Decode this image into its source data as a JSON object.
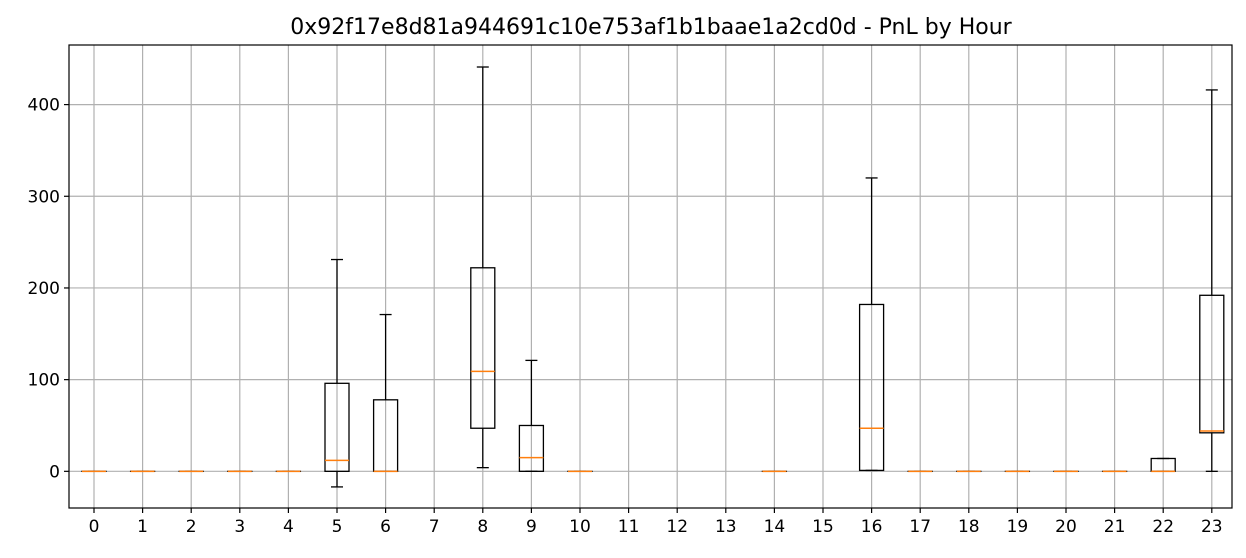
{
  "chart_data": {
    "type": "box",
    "title": "0x92f17e8d81a944691c10e753af1b1baae1a2cd0d - PnL by Hour",
    "xlabel": "",
    "ylabel": "",
    "ylim": [
      -40,
      465
    ],
    "yticks": [
      0,
      100,
      200,
      300,
      400
    ],
    "grid": true,
    "legend": "none",
    "categories": [
      "0",
      "1",
      "2",
      "3",
      "4",
      "5",
      "6",
      "7",
      "8",
      "9",
      "10",
      "11",
      "12",
      "13",
      "14",
      "15",
      "16",
      "17",
      "18",
      "19",
      "20",
      "21",
      "22",
      "23"
    ],
    "boxes": [
      {
        "x": "0",
        "whislo": 0,
        "q1": 0,
        "med": 0,
        "q3": 0,
        "whishi": 0
      },
      {
        "x": "1",
        "whislo": 0,
        "q1": 0,
        "med": 0,
        "q3": 0,
        "whishi": 0
      },
      {
        "x": "2",
        "whislo": 0,
        "q1": 0,
        "med": 0,
        "q3": 0,
        "whishi": 0
      },
      {
        "x": "3",
        "whislo": 0,
        "q1": 0,
        "med": 0,
        "q3": 0,
        "whishi": 0
      },
      {
        "x": "4",
        "whislo": 0,
        "q1": 0,
        "med": 0,
        "q3": 0,
        "whishi": 0
      },
      {
        "x": "5",
        "whislo": -17,
        "q1": 0,
        "med": 12,
        "q3": 96,
        "whishi": 231
      },
      {
        "x": "6",
        "whislo": 0,
        "q1": 0,
        "med": 0,
        "q3": 78,
        "whishi": 171
      },
      {
        "x": "8",
        "whislo": 4,
        "q1": 47,
        "med": 109,
        "q3": 222,
        "whishi": 441
      },
      {
        "x": "9",
        "whislo": 0,
        "q1": 0,
        "med": 15,
        "q3": 50,
        "whishi": 121
      },
      {
        "x": "10",
        "whislo": 0,
        "q1": 0,
        "med": 0,
        "q3": 0,
        "whishi": 0
      },
      {
        "x": "14",
        "whislo": 0,
        "q1": 0,
        "med": 0,
        "q3": 0,
        "whishi": 0
      },
      {
        "x": "16",
        "whislo": 1,
        "q1": 1,
        "med": 47,
        "q3": 182,
        "whishi": 320
      },
      {
        "x": "17",
        "whislo": 0,
        "q1": 0,
        "med": 0,
        "q3": 0,
        "whishi": 0
      },
      {
        "x": "18",
        "whislo": 0,
        "q1": 0,
        "med": 0,
        "q3": 0,
        "whishi": 0
      },
      {
        "x": "19",
        "whislo": 0,
        "q1": 0,
        "med": 0,
        "q3": 0,
        "whishi": 0
      },
      {
        "x": "20",
        "whislo": 0,
        "q1": 0,
        "med": 0,
        "q3": 0,
        "whishi": 0
      },
      {
        "x": "21",
        "whislo": 0,
        "q1": 0,
        "med": 0,
        "q3": 0,
        "whishi": 0
      },
      {
        "x": "22",
        "whislo": 0,
        "q1": 0,
        "med": 0,
        "q3": 14,
        "whishi": 14
      },
      {
        "x": "23",
        "whislo": 0,
        "q1": 42,
        "med": 44,
        "q3": 192,
        "whishi": 416
      }
    ],
    "colors": {
      "box": "#000000",
      "median": "#ff7f0e",
      "grid": "#b0b0b0",
      "background": "#ffffff"
    }
  }
}
